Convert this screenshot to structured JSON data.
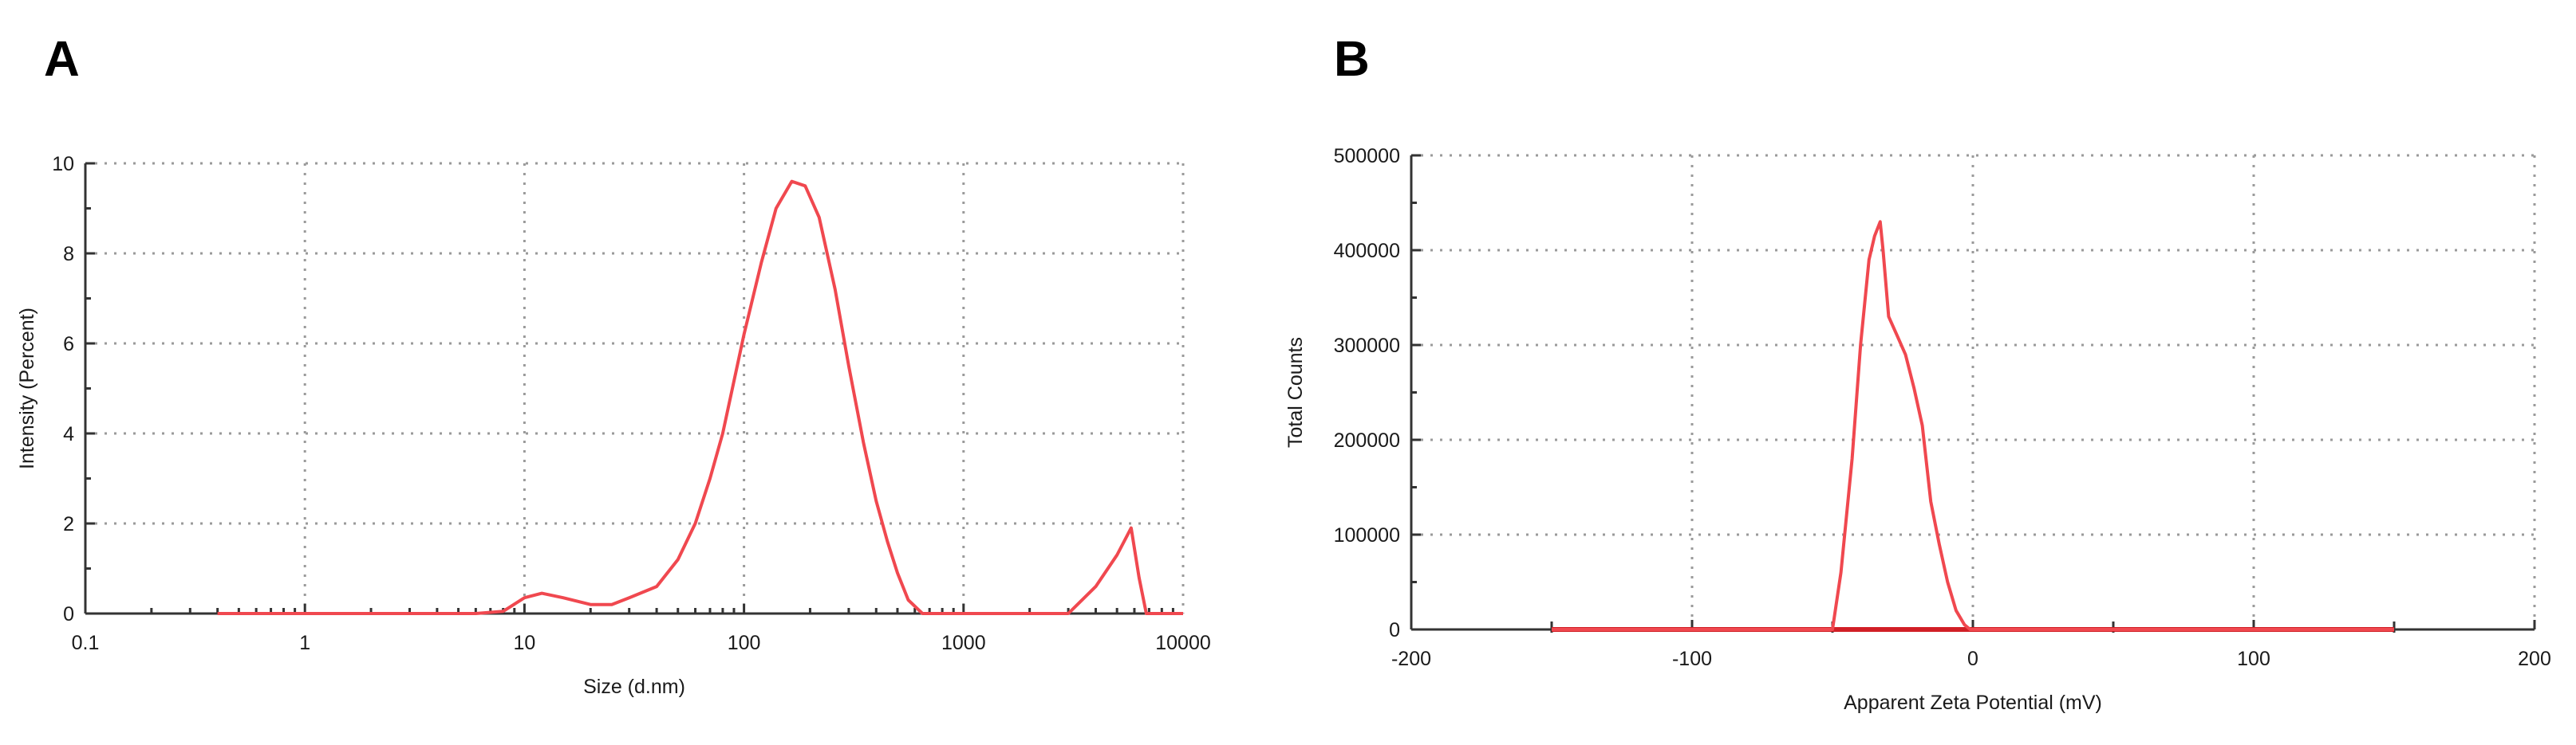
{
  "panels": {
    "a_label": "A",
    "b_label": "B"
  },
  "colors": {
    "series_line": "#f0484f",
    "baseline": "#d11f26",
    "grid": "#9a9a9a",
    "axis": "#333333"
  },
  "chart_data": [
    {
      "panel": "A",
      "type": "line",
      "title": "",
      "xlabel": "Size (d.nm)",
      "ylabel": "Intensity (Percent)",
      "x_scale": "log",
      "xlim": [
        0.1,
        10000
      ],
      "ylim": [
        0,
        10
      ],
      "x_ticks": [
        "0.1",
        "1",
        "10",
        "100",
        "1000",
        "10000"
      ],
      "y_ticks": [
        "0",
        "2",
        "4",
        "6",
        "8",
        "10"
      ],
      "grid": true,
      "legend": "none",
      "series": [
        {
          "x": [
            0.4,
            6,
            8,
            10,
            12,
            15,
            20,
            25,
            30,
            40,
            50,
            60,
            70,
            80,
            100,
            120,
            140,
            165,
            190,
            220,
            260,
            300,
            350,
            400,
            450,
            500,
            560,
            650,
            800,
            1000,
            2000,
            3000,
            4000,
            5000,
            5800,
            6300,
            6800,
            7500,
            10000
          ],
          "y": [
            0,
            0,
            0.05,
            0.35,
            0.45,
            0.35,
            0.2,
            0.2,
            0.35,
            0.6,
            1.2,
            2.0,
            3.0,
            4.0,
            6.2,
            7.8,
            9.0,
            9.6,
            9.5,
            8.8,
            7.2,
            5.5,
            3.8,
            2.5,
            1.6,
            0.9,
            0.3,
            0,
            0,
            0,
            0,
            0,
            0.6,
            1.3,
            1.9,
            0.8,
            0,
            0,
            0
          ]
        }
      ]
    },
    {
      "panel": "B",
      "type": "line",
      "title": "",
      "xlabel": "Apparent Zeta Potential (mV)",
      "ylabel": "Total Counts",
      "xlim": [
        -200,
        200
      ],
      "ylim": [
        0,
        500000
      ],
      "x_ticks": [
        "-200",
        "-100",
        "0",
        "100",
        "200"
      ],
      "y_ticks": [
        "0",
        "100000",
        "200000",
        "300000",
        "400000",
        "500000"
      ],
      "grid": true,
      "legend": "none",
      "series": [
        {
          "x": [
            -150,
            -50,
            -47,
            -43,
            -40,
            -37,
            -35,
            -33,
            -32,
            -30,
            -27,
            -24,
            -21,
            -18,
            -15,
            -12,
            -9,
            -6,
            -3,
            -1,
            0,
            150
          ],
          "y": [
            0,
            0,
            60000,
            180000,
            300000,
            390000,
            415000,
            430000,
            400000,
            330000,
            310000,
            290000,
            255000,
            215000,
            135000,
            90000,
            50000,
            20000,
            5000,
            0,
            0,
            0
          ]
        }
      ]
    }
  ]
}
